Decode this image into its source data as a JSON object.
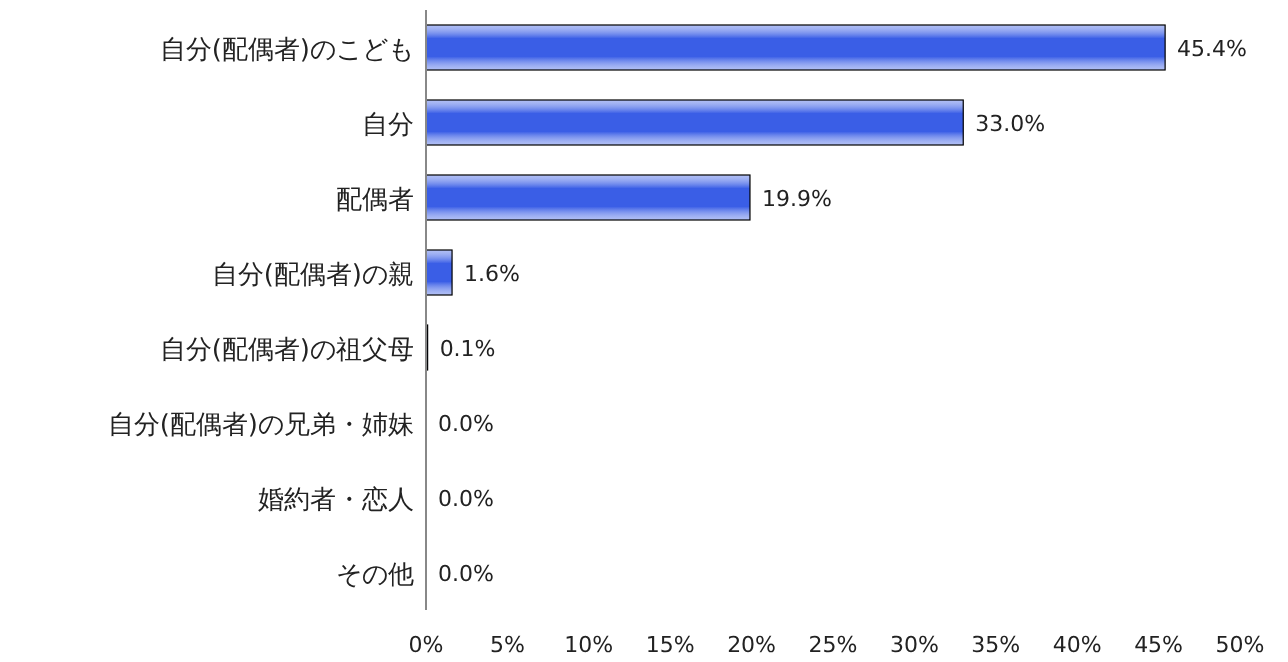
{
  "chart_data": {
    "type": "bar",
    "orientation": "horizontal",
    "categories": [
      "自分(配偶者)のこども",
      "自分",
      "配偶者",
      "自分(配偶者)の親",
      "自分(配偶者)の祖父母",
      "自分(配偶者)の兄弟・姉妹",
      "婚約者・恋人",
      "その他"
    ],
    "values": [
      45.4,
      33.0,
      19.9,
      1.6,
      0.1,
      0.0,
      0.0,
      0.0
    ],
    "value_labels": [
      "45.4%",
      "33.0%",
      "19.9%",
      "1.6%",
      "0.1%",
      "0.0%",
      "0.0%",
      "0.0%"
    ],
    "color": "#3a5ee6",
    "xlim": [
      0,
      50
    ],
    "xticks": [
      {
        "value": 0,
        "label": "0%"
      },
      {
        "value": 5,
        "label": "5%"
      },
      {
        "value": 10,
        "label": "10%"
      },
      {
        "value": 15,
        "label": "15%"
      },
      {
        "value": 20,
        "label": "20%"
      },
      {
        "value": 25,
        "label": "25%"
      },
      {
        "value": 30,
        "label": "30%"
      },
      {
        "value": 35,
        "label": "35%"
      },
      {
        "value": 40,
        "label": "40%"
      },
      {
        "value": 45,
        "label": "45%"
      },
      {
        "value": 50,
        "label": "50%"
      }
    ],
    "grid": false
  }
}
